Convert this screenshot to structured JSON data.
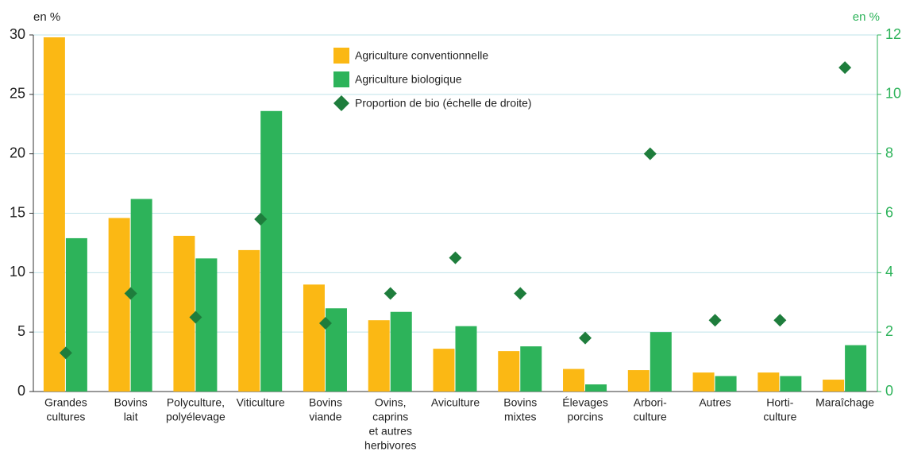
{
  "chart_data": {
    "type": "bar",
    "y_axis_title": "en %",
    "y2_axis_title": "en %",
    "categories": [
      [
        "Grandes",
        "cultures"
      ],
      [
        "Bovins",
        "lait"
      ],
      [
        "Polyculture,",
        "polyélevage"
      ],
      [
        "Viticulture"
      ],
      [
        "Bovins",
        "viande"
      ],
      [
        "Ovins,",
        "caprins",
        "et autres",
        "herbivores"
      ],
      [
        "Aviculture"
      ],
      [
        "Bovins",
        "mixtes"
      ],
      [
        "Élevages",
        "porcins"
      ],
      [
        "Arbori-",
        "culture"
      ],
      [
        "Autres"
      ],
      [
        "Horti-",
        "culture"
      ],
      [
        "Maraîchage"
      ]
    ],
    "series": [
      {
        "name": "Agriculture conventionnelle",
        "color": "#fbb814",
        "values": [
          29.8,
          14.6,
          13.1,
          11.9,
          9.0,
          6.0,
          3.6,
          3.4,
          1.9,
          1.8,
          1.6,
          1.6,
          1.0
        ]
      },
      {
        "name": "Agriculture biologique",
        "color": "#2db35a",
        "values": [
          12.9,
          16.2,
          11.2,
          23.6,
          7.0,
          6.7,
          5.5,
          3.8,
          0.6,
          5.0,
          1.3,
          1.3,
          3.9
        ]
      },
      {
        "name": "Proportion de bio (échelle de droite)",
        "color": "#1e7d3c",
        "type": "scatter",
        "axis": "y2",
        "values": [
          1.3,
          3.3,
          2.5,
          5.8,
          2.3,
          3.3,
          4.5,
          3.3,
          1.8,
          8.0,
          2.4,
          2.4,
          10.9
        ]
      }
    ],
    "ylim": [
      0,
      30
    ],
    "yticks": [
      0,
      5,
      10,
      15,
      20,
      25,
      30
    ],
    "y2lim": [
      0,
      12
    ],
    "y2ticks": [
      0,
      2,
      4,
      6,
      8,
      10,
      12
    ],
    "grid": true
  }
}
